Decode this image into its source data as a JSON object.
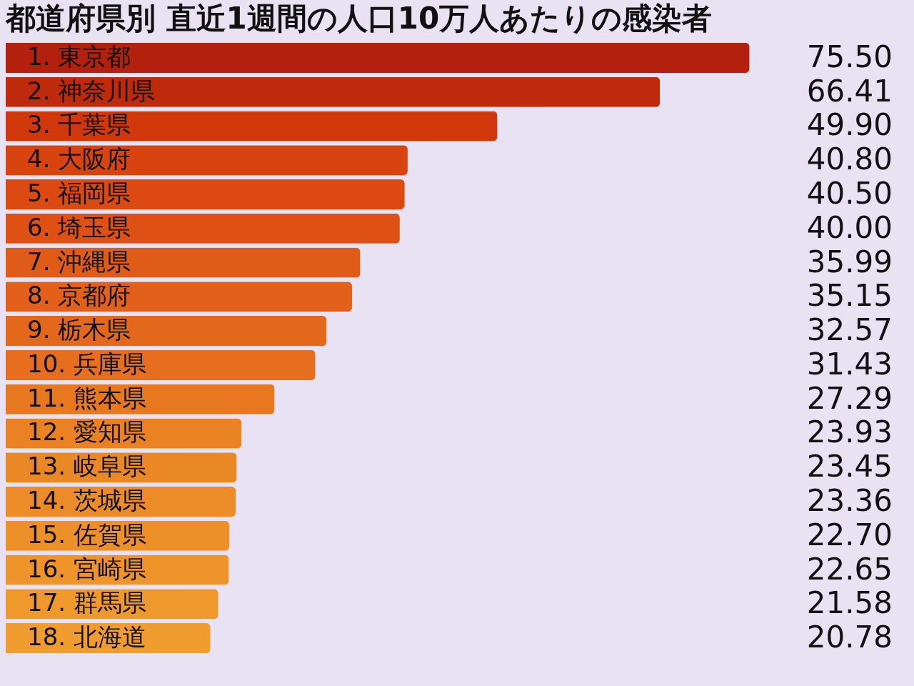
{
  "chart_data": {
    "type": "bar",
    "orientation": "horizontal",
    "title": "都道府県別 直近1週間の人口10万人あたりの感染者",
    "categories": [
      "1. 東京都",
      "2. 神奈川県",
      "3. 千葉県",
      "4. 大阪府",
      "5. 福岡県",
      "6. 埼玉県",
      "7. 沖縄県",
      "8. 京都府",
      "9. 栃木県",
      "10. 兵庫県",
      "11. 熊本県",
      "12. 愛知県",
      "13. 岐阜県",
      "14. 茨城県",
      "15. 佐賀県",
      "16. 宮崎県",
      "17. 群馬県",
      "18. 北海道"
    ],
    "values": [
      75.5,
      66.41,
      49.9,
      40.8,
      40.5,
      40.0,
      35.99,
      35.15,
      32.57,
      31.43,
      27.29,
      23.93,
      23.45,
      23.36,
      22.7,
      22.65,
      21.58,
      20.78
    ],
    "value_labels": [
      "75.50",
      "66.41",
      "49.90",
      "40.80",
      "40.50",
      "40.00",
      "35.99",
      "35.15",
      "32.57",
      "31.43",
      "27.29",
      "23.93",
      "23.45",
      "23.36",
      "22.70",
      "22.65",
      "21.58",
      "20.78"
    ],
    "colors": [
      "#b3200e",
      "#c02a0c",
      "#d0380c",
      "#d84410",
      "#dc4a12",
      "#de5014",
      "#e05a18",
      "#e2601a",
      "#e4681c",
      "#e66e1e",
      "#e87820",
      "#ea8224",
      "#eb8826",
      "#ec8c28",
      "#ed9029",
      "#ee942a",
      "#ef982c",
      "#f09c2e"
    ]
  }
}
